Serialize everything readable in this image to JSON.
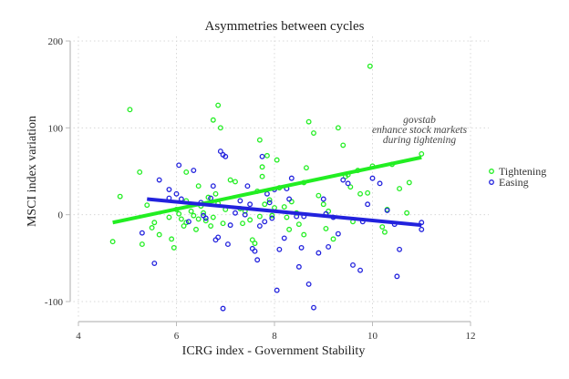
{
  "chart_data": {
    "type": "scatter",
    "title": "Asymmetries between cycles",
    "xlabel": "ICRG index - Government Stability",
    "ylabel": "MSCI index variation",
    "xlim": [
      4,
      12
    ],
    "ylim": [
      -100,
      200
    ],
    "xticks": [
      4,
      6,
      8,
      10,
      12
    ],
    "yticks": [
      -100,
      0,
      100,
      200
    ],
    "xtick_labels": [
      "4",
      "6",
      "8",
      "10",
      "12"
    ],
    "ytick_labels": [
      "-100",
      "0",
      "100",
      "200"
    ],
    "grid": true,
    "legend_position": "right",
    "annotation": [
      "govstab",
      "enhance stock markets",
      "during tightening"
    ],
    "colors": {
      "tightening": "#22ee22",
      "easing": "#2222dd",
      "grid": "#d8d8d8",
      "axis": "#bbbbbb"
    },
    "series": [
      {
        "name": "Tightening",
        "fit": {
          "x": [
            4.7,
            11.0
          ],
          "y": [
            -9,
            66
          ]
        },
        "points": [
          [
            5.05,
            121
          ],
          [
            5.25,
            49
          ],
          [
            4.7,
            -31
          ],
          [
            4.85,
            21
          ],
          [
            5.4,
            11
          ],
          [
            5.5,
            -15
          ],
          [
            5.3,
            -34
          ],
          [
            5.55,
            -9
          ],
          [
            5.85,
            -3
          ],
          [
            5.65,
            -23
          ],
          [
            5.95,
            -38
          ],
          [
            5.9,
            -28
          ],
          [
            6.0,
            6
          ],
          [
            6.05,
            1
          ],
          [
            6.1,
            -5
          ],
          [
            6.15,
            -13
          ],
          [
            6.2,
            -9
          ],
          [
            6.2,
            16
          ],
          [
            6.3,
            4
          ],
          [
            6.35,
            -1
          ],
          [
            6.45,
            -5
          ],
          [
            6.5,
            10
          ],
          [
            6.4,
            -17
          ],
          [
            6.55,
            2
          ],
          [
            6.6,
            -7
          ],
          [
            6.65,
            20
          ],
          [
            6.7,
            -13
          ],
          [
            6.75,
            -3
          ],
          [
            6.8,
            24
          ],
          [
            6.85,
            13
          ],
          [
            6.9,
            100
          ],
          [
            6.85,
            126
          ],
          [
            6.75,
            109
          ],
          [
            6.95,
            -10
          ],
          [
            7.0,
            6
          ],
          [
            7.1,
            40
          ],
          [
            7.2,
            38
          ],
          [
            7.3,
            7
          ],
          [
            7.35,
            -10
          ],
          [
            7.4,
            4
          ],
          [
            7.5,
            -6
          ],
          [
            7.55,
            -29
          ],
          [
            7.6,
            -33
          ],
          [
            7.65,
            27
          ],
          [
            7.7,
            -2
          ],
          [
            7.75,
            44
          ],
          [
            7.8,
            12
          ],
          [
            7.9,
            17
          ],
          [
            7.95,
            -1
          ],
          [
            8.0,
            8
          ],
          [
            8.05,
            63
          ],
          [
            7.75,
            55
          ],
          [
            7.85,
            68
          ],
          [
            7.7,
            86
          ],
          [
            8.1,
            31
          ],
          [
            8.2,
            9
          ],
          [
            8.25,
            -3
          ],
          [
            8.3,
            -17
          ],
          [
            8.35,
            15
          ],
          [
            8.45,
            2
          ],
          [
            8.5,
            -11
          ],
          [
            8.6,
            -23
          ],
          [
            8.65,
            54
          ],
          [
            8.7,
            107
          ],
          [
            8.8,
            94
          ],
          [
            8.9,
            22
          ],
          [
            9.05,
            -16
          ],
          [
            9.1,
            4
          ],
          [
            9.2,
            -28
          ],
          [
            9.3,
            100
          ],
          [
            9.4,
            80
          ],
          [
            9.45,
            44
          ],
          [
            9.5,
            46
          ],
          [
            9.55,
            32
          ],
          [
            9.6,
            -8
          ],
          [
            9.7,
            51
          ],
          [
            9.75,
            24
          ],
          [
            9.9,
            25
          ],
          [
            10.0,
            56
          ],
          [
            9.95,
            171
          ],
          [
            10.2,
            -14
          ],
          [
            10.25,
            -20
          ],
          [
            10.4,
            58
          ],
          [
            10.55,
            30
          ],
          [
            10.3,
            6
          ],
          [
            10.7,
            2
          ],
          [
            10.75,
            37
          ],
          [
            11.0,
            70
          ],
          [
            8.6,
            37
          ],
          [
            9.0,
            12
          ],
          [
            6.2,
            49
          ],
          [
            6.45,
            33
          ]
        ]
      },
      {
        "name": "Easing",
        "fit": {
          "x": [
            5.4,
            11.0
          ],
          "y": [
            18,
            -12
          ]
        },
        "points": [
          [
            5.3,
            -21
          ],
          [
            5.55,
            -56
          ],
          [
            5.65,
            40
          ],
          [
            5.85,
            29
          ],
          [
            6.0,
            24
          ],
          [
            6.05,
            57
          ],
          [
            6.1,
            18
          ],
          [
            6.25,
            -8
          ],
          [
            6.35,
            51
          ],
          [
            6.5,
            14
          ],
          [
            6.6,
            -4
          ],
          [
            6.7,
            19
          ],
          [
            6.75,
            33
          ],
          [
            6.8,
            -29
          ],
          [
            6.85,
            -26
          ],
          [
            6.9,
            73
          ],
          [
            6.95,
            69
          ],
          [
            7.0,
            67
          ],
          [
            7.05,
            -34
          ],
          [
            7.1,
            -12
          ],
          [
            7.2,
            2
          ],
          [
            7.3,
            16
          ],
          [
            7.4,
            0
          ],
          [
            7.45,
            33
          ],
          [
            7.5,
            12
          ],
          [
            7.55,
            -39
          ],
          [
            7.6,
            -42
          ],
          [
            7.65,
            -52
          ],
          [
            7.7,
            -13
          ],
          [
            7.75,
            67
          ],
          [
            7.8,
            -8
          ],
          [
            7.85,
            24
          ],
          [
            7.9,
            14
          ],
          [
            7.95,
            -4
          ],
          [
            8.0,
            29
          ],
          [
            8.05,
            -87
          ],
          [
            8.1,
            -40
          ],
          [
            8.2,
            -27
          ],
          [
            8.25,
            30
          ],
          [
            8.3,
            18
          ],
          [
            8.35,
            42
          ],
          [
            8.5,
            -60
          ],
          [
            8.55,
            -38
          ],
          [
            8.6,
            -2
          ],
          [
            8.7,
            -80
          ],
          [
            8.8,
            -107
          ],
          [
            8.9,
            -44
          ],
          [
            9.0,
            18
          ],
          [
            9.05,
            1
          ],
          [
            9.1,
            -37
          ],
          [
            9.2,
            -3
          ],
          [
            9.3,
            -22
          ],
          [
            9.4,
            40
          ],
          [
            9.5,
            36
          ],
          [
            9.6,
            -58
          ],
          [
            9.75,
            -64
          ],
          [
            9.8,
            -8
          ],
          [
            9.9,
            12
          ],
          [
            10.0,
            42
          ],
          [
            10.15,
            36
          ],
          [
            10.3,
            5
          ],
          [
            10.45,
            -11
          ],
          [
            10.5,
            -71
          ],
          [
            10.55,
            -40
          ],
          [
            11.0,
            -9
          ],
          [
            11.0,
            -17
          ],
          [
            6.95,
            -108
          ],
          [
            5.85,
            19
          ],
          [
            6.55,
            -1
          ],
          [
            8.45,
            -2
          ]
        ]
      }
    ]
  }
}
